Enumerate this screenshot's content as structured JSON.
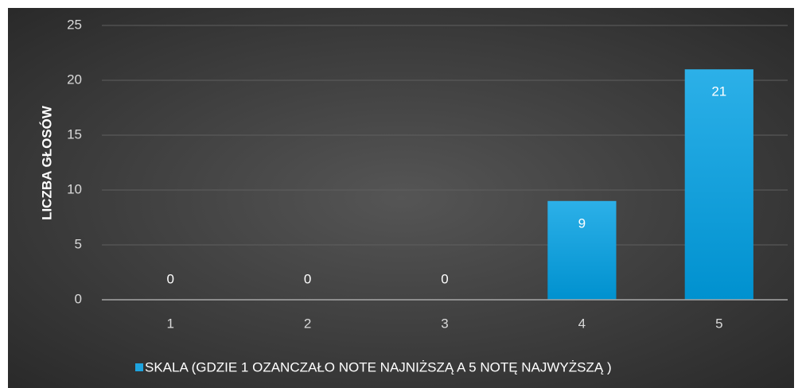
{
  "chart_data": {
    "type": "bar",
    "y_axis_label": "LICZBA GŁOSÓW",
    "categories": [
      "1",
      "2",
      "3",
      "4",
      "5"
    ],
    "series": [
      {
        "name": "SKALA (GDZIE 1 OZANCZAŁO NOTE NAJNIŻSZĄ A 5 NOTĘ NAJWYŻSZĄ )",
        "color": "#1ea4df",
        "values": [
          0,
          0,
          0,
          9,
          21
        ]
      }
    ],
    "ylim": [
      0,
      25
    ],
    "yticks": [
      0,
      5,
      10,
      15,
      20,
      25
    ],
    "grid": true,
    "legend": "bottom"
  }
}
